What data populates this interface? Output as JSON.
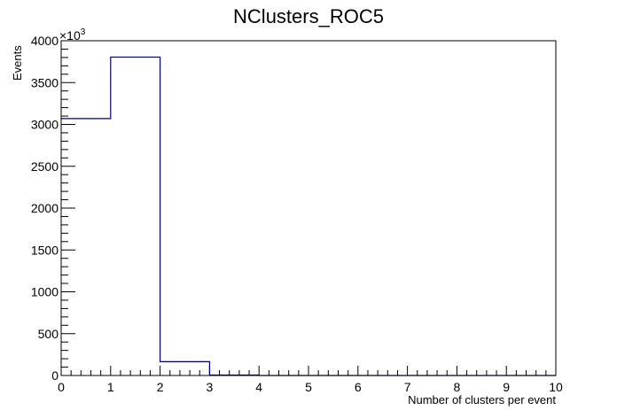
{
  "chart_data": {
    "type": "bar",
    "title": "NClusters_ROC5",
    "xlabel": "Number of clusters per event",
    "ylabel": "Events",
    "y_multiplier": "×10",
    "y_multiplier_exp": "3",
    "xlim": [
      0,
      10
    ],
    "ylim": [
      0,
      4000
    ],
    "x_ticks": [
      "0",
      "1",
      "2",
      "3",
      "4",
      "5",
      "6",
      "7",
      "8",
      "9",
      "10"
    ],
    "y_ticks": [
      "0",
      "500",
      "1000",
      "1500",
      "2000",
      "2500",
      "3000",
      "3500",
      "4000"
    ],
    "bin_edges": [
      0,
      1,
      2,
      3,
      4,
      5,
      6,
      7,
      8,
      9,
      10
    ],
    "values": [
      3070,
      3805,
      165,
      5,
      0,
      0,
      0,
      0,
      0,
      0
    ],
    "line_color": "#000080",
    "grid": false,
    "legend": "none"
  }
}
